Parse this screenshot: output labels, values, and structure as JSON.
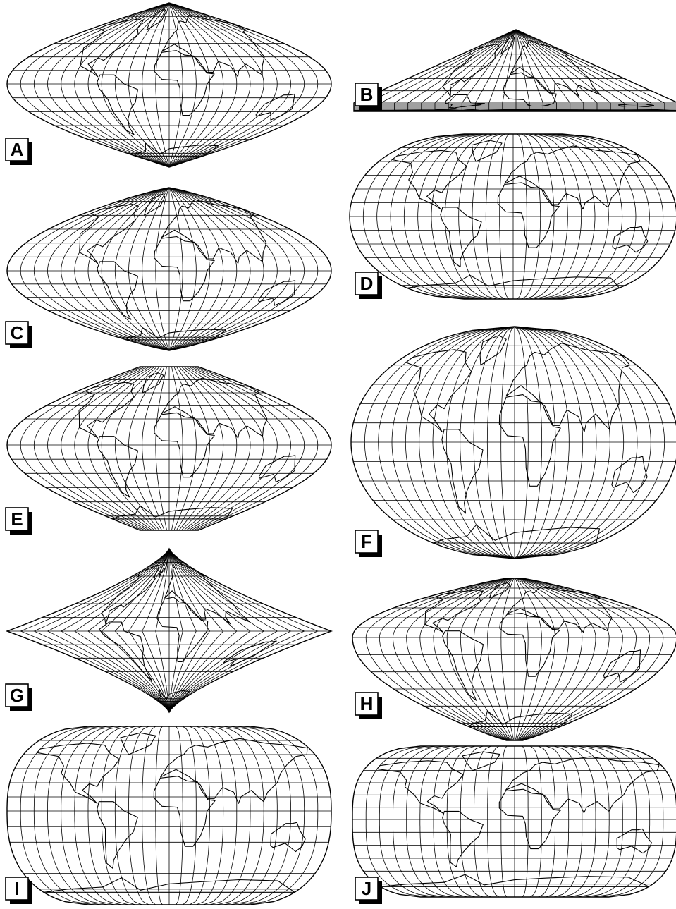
{
  "panels": [
    {
      "id": "A",
      "label": "A",
      "shape": "sinusoidal"
    },
    {
      "id": "B",
      "label": "B",
      "shape": "northern-triangle"
    },
    {
      "id": "C",
      "label": "C",
      "shape": "pointed-sinusoidal"
    },
    {
      "id": "D",
      "label": "D",
      "shape": "flat-polar-ellipse"
    },
    {
      "id": "E",
      "label": "E",
      "shape": "flat-polar-sinusoidal"
    },
    {
      "id": "F",
      "label": "F",
      "shape": "ellipse"
    },
    {
      "id": "G",
      "label": "G",
      "shape": "concave-pointed"
    },
    {
      "id": "H",
      "label": "H",
      "shape": "flat-polar-pointed"
    },
    {
      "id": "I",
      "label": "I",
      "shape": "flat-polar-rounded"
    },
    {
      "id": "J",
      "label": "J",
      "shape": "flat-polar-quartic"
    }
  ]
}
